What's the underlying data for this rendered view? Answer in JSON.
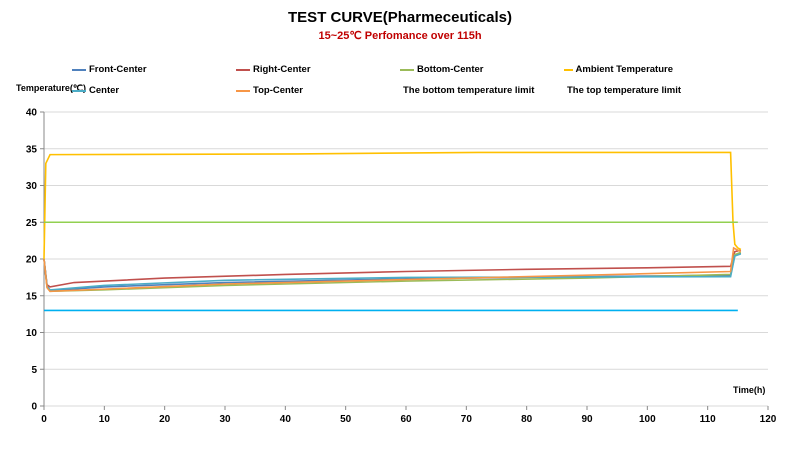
{
  "chart_data": {
    "type": "line",
    "title": "TEST CURVE(Pharmeceuticals)",
    "subtitle": "15~25℃ Perfomance over 115h",
    "xlabel": "Time(h)",
    "ylabel": "Temperature(℃)",
    "xlim": [
      0,
      120
    ],
    "ylim": [
      0,
      40
    ],
    "xticks": [
      0,
      10,
      20,
      30,
      40,
      50,
      60,
      70,
      80,
      90,
      100,
      110,
      120
    ],
    "yticks": [
      0,
      5,
      10,
      15,
      20,
      25,
      30,
      35,
      40
    ],
    "grid": true,
    "legend_position": "top",
    "series": [
      {
        "name": "Front-Center",
        "color": "#4f81bd",
        "points": [
          [
            0,
            20
          ],
          [
            0.5,
            16.3
          ],
          [
            1,
            15.7
          ],
          [
            10,
            16.2
          ],
          [
            30,
            16.8
          ],
          [
            60,
            17.3
          ],
          [
            90,
            17.6
          ],
          [
            113.8,
            17.8
          ],
          [
            114.5,
            20.5
          ],
          [
            115.5,
            20.8
          ]
        ]
      },
      {
        "name": "Right-Center",
        "color": "#c0504d",
        "points": [
          [
            0,
            20
          ],
          [
            0.5,
            16.5
          ],
          [
            1,
            16.2
          ],
          [
            5,
            16.8
          ],
          [
            20,
            17.4
          ],
          [
            40,
            17.9
          ],
          [
            60,
            18.3
          ],
          [
            80,
            18.6
          ],
          [
            100,
            18.8
          ],
          [
            113.8,
            19
          ],
          [
            114.5,
            21
          ],
          [
            115.5,
            21.2
          ]
        ]
      },
      {
        "name": "Bottom-Center",
        "color": "#9bbb59",
        "points": [
          [
            0,
            20
          ],
          [
            0.5,
            16.2
          ],
          [
            1,
            15.6
          ],
          [
            10,
            15.8
          ],
          [
            30,
            16.4
          ],
          [
            60,
            17
          ],
          [
            90,
            17.4
          ],
          [
            113.8,
            17.9
          ],
          [
            114.5,
            20.6
          ],
          [
            115.5,
            20.9
          ]
        ]
      },
      {
        "name": "Ambient Temperature",
        "color": "#ffc000",
        "points": [
          [
            0,
            20
          ],
          [
            0.3,
            33
          ],
          [
            1,
            34.2
          ],
          [
            42,
            34.3
          ],
          [
            72,
            34.5
          ],
          [
            113.8,
            34.5
          ],
          [
            114.2,
            25
          ],
          [
            114.5,
            22
          ],
          [
            115,
            21.5
          ],
          [
            115.5,
            21.3
          ]
        ]
      },
      {
        "name": "Center",
        "color": "#4bacc6",
        "points": [
          [
            0,
            20
          ],
          [
            0.5,
            16.3
          ],
          [
            1,
            15.8
          ],
          [
            10,
            16.4
          ],
          [
            30,
            17.1
          ],
          [
            60,
            17.5
          ],
          [
            113.8,
            17.6
          ],
          [
            114.5,
            20.4
          ],
          [
            115.5,
            20.7
          ]
        ]
      },
      {
        "name": "Top-Center",
        "color": "#f79646",
        "points": [
          [
            0,
            20
          ],
          [
            0.5,
            16.1
          ],
          [
            1,
            15.6
          ],
          [
            10,
            15.9
          ],
          [
            30,
            16.6
          ],
          [
            60,
            17.2
          ],
          [
            90,
            17.8
          ],
          [
            113.8,
            18.3
          ],
          [
            114.3,
            21.5
          ],
          [
            115.5,
            21
          ]
        ]
      },
      {
        "name": "The bottom temperature limit",
        "color": "#00b0f0",
        "points": [
          [
            0,
            13
          ],
          [
            115,
            13
          ]
        ]
      },
      {
        "name": "The top temperature limit",
        "color": "#92d050",
        "points": [
          [
            0,
            25
          ],
          [
            115,
            25
          ]
        ]
      }
    ]
  }
}
